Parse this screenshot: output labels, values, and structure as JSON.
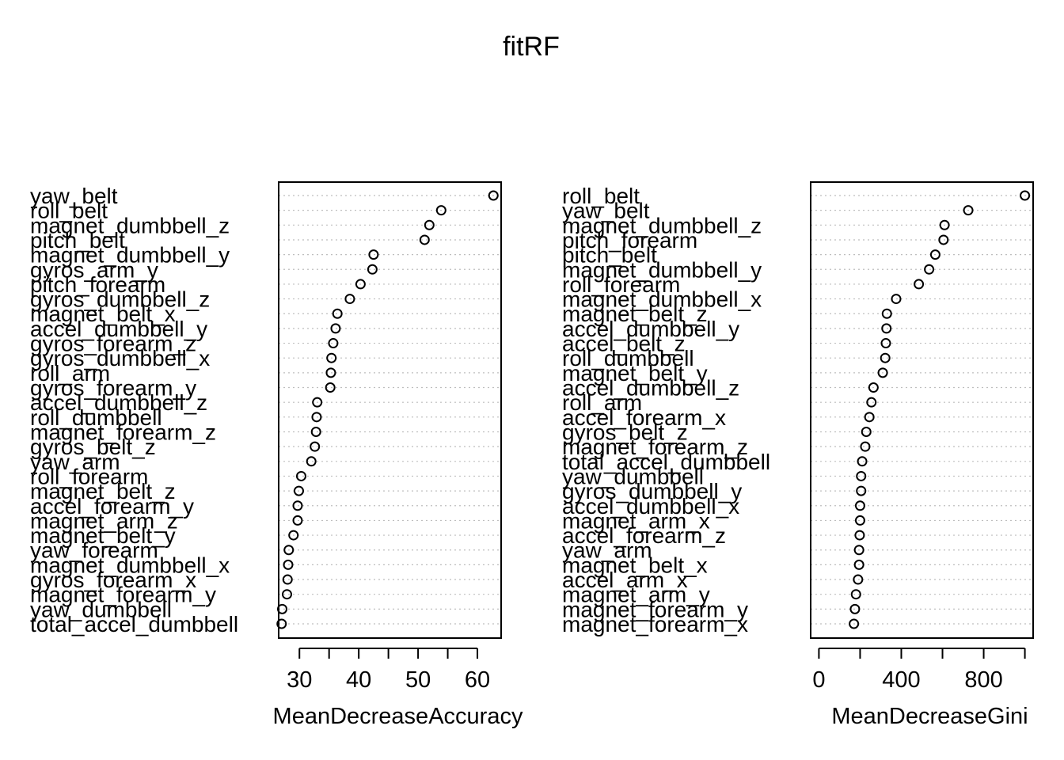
{
  "title": "fitRF",
  "colors": {
    "points": "#000000",
    "gridlines": "#bebebe",
    "frame": "#000000"
  },
  "chart_data": [
    {
      "type": "scatter",
      "subtype": "dotchart",
      "xlabel": "MeanDecreaseAccuracy",
      "xlim": [
        26.5,
        64
      ],
      "xticks": [
        30,
        40,
        50,
        60
      ],
      "minor_ticks": [
        30,
        35,
        40,
        45,
        50,
        55,
        60
      ],
      "grid": "horizontal dotted",
      "categories": [
        "yaw_belt",
        "roll_belt",
        "magnet_dumbbell_z",
        "pitch_belt",
        "magnet_dumbbell_y",
        "gyros_arm_y",
        "pitch_forearm",
        "gyros_dumbbell_z",
        "magnet_belt_x",
        "accel_dumbbell_y",
        "gyros_forearm_z",
        "gyros_dumbbell_x",
        "roll_arm",
        "gyros_forearm_y",
        "accel_dumbbell_z",
        "roll_dumbbell",
        "magnet_forearm_z",
        "gyros_belt_z",
        "yaw_arm",
        "roll_forearm",
        "magnet_belt_z",
        "accel_forearm_y",
        "magnet_arm_z",
        "magnet_belt_y",
        "yaw_forearm",
        "magnet_dumbbell_x",
        "gyros_forearm_x",
        "magnet_forearm_y",
        "yaw_dumbbell",
        "total_accel_dumbbell"
      ],
      "values": [
        62.7,
        53.9,
        51.9,
        51.1,
        42.5,
        42.3,
        40.3,
        38.5,
        36.4,
        36.1,
        35.7,
        35.4,
        35.3,
        35.2,
        33.0,
        32.9,
        32.8,
        32.6,
        32.0,
        30.3,
        29.9,
        29.7,
        29.7,
        29.0,
        28.2,
        28.1,
        28.0,
        27.9,
        27.1,
        27.0
      ]
    },
    {
      "type": "scatter",
      "subtype": "dotchart",
      "xlabel": "MeanDecreaseGini",
      "xlim": [
        -40,
        1040
      ],
      "xticks": [
        0,
        400,
        800
      ],
      "minor_ticks": [
        0,
        200,
        400,
        600,
        800,
        1000
      ],
      "grid": "horizontal dotted",
      "categories": [
        "roll_belt",
        "yaw_belt",
        "magnet_dumbbell_z",
        "pitch_forearm",
        "pitch_belt",
        "magnet_dumbbell_y",
        "roll_forearm",
        "magnet_dumbbell_x",
        "magnet_belt_z",
        "accel_dumbbell_y",
        "accel_belt_z",
        "roll_dumbbell",
        "magnet_belt_y",
        "accel_dumbbell_z",
        "roll_arm",
        "accel_forearm_x",
        "gyros_belt_z",
        "magnet_forearm_z",
        "total_accel_dumbbell",
        "yaw_dumbbell",
        "gyros_dumbbell_y",
        "accel_dumbbell_x",
        "magnet_arm_x",
        "accel_forearm_z",
        "yaw_arm",
        "magnet_belt_x",
        "accel_arm_x",
        "magnet_arm_y",
        "magnet_forearm_y",
        "magnet_forearm_x"
      ],
      "values": [
        1000,
        725,
        610,
        605,
        565,
        535,
        485,
        375,
        330,
        328,
        325,
        322,
        310,
        265,
        255,
        245,
        230,
        225,
        210,
        205,
        205,
        200,
        200,
        198,
        195,
        195,
        190,
        180,
        175,
        170
      ]
    }
  ]
}
